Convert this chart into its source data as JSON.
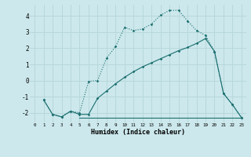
{
  "xlabel": "Humidex (Indice chaleur)",
  "bg_color": "#cce8ec",
  "grid_color": "#b8d8dc",
  "line_color": "#1a6e6e",
  "xlim": [
    -0.5,
    23.5
  ],
  "ylim": [
    -2.6,
    4.7
  ],
  "yticks": [
    -2,
    -1,
    0,
    1,
    2,
    3,
    4
  ],
  "xticks": [
    0,
    1,
    2,
    3,
    4,
    5,
    6,
    7,
    8,
    9,
    10,
    11,
    12,
    13,
    14,
    15,
    16,
    17,
    18,
    19,
    20,
    21,
    22,
    23
  ],
  "line1_x": [
    1,
    2,
    3,
    4,
    5,
    6,
    7,
    8,
    9,
    10,
    11,
    12,
    13,
    14,
    15,
    16,
    17,
    18,
    19,
    20,
    21,
    22,
    23
  ],
  "line1_y": [
    -1.2,
    -2.1,
    -2.25,
    -1.9,
    -2.0,
    -0.05,
    0.0,
    1.4,
    2.1,
    3.3,
    3.1,
    3.2,
    3.5,
    4.05,
    4.35,
    4.35,
    3.7,
    3.1,
    2.8,
    1.8,
    -0.8,
    -1.5,
    -2.3
  ],
  "line2_x": [
    1,
    2,
    3,
    4,
    5,
    6,
    7,
    8,
    9,
    10,
    11,
    12,
    13,
    14,
    15,
    16,
    17,
    18,
    19,
    20,
    21,
    22,
    23
  ],
  "line2_y": [
    -1.2,
    -2.1,
    -2.25,
    -1.9,
    -2.1,
    -2.1,
    -1.1,
    -0.65,
    -0.2,
    0.2,
    0.55,
    0.85,
    1.1,
    1.35,
    1.6,
    1.85,
    2.05,
    2.3,
    2.6,
    1.8,
    -0.8,
    -1.5,
    -2.3
  ],
  "line3_x": [
    5,
    23
  ],
  "line3_y": [
    -2.3,
    -2.3
  ]
}
